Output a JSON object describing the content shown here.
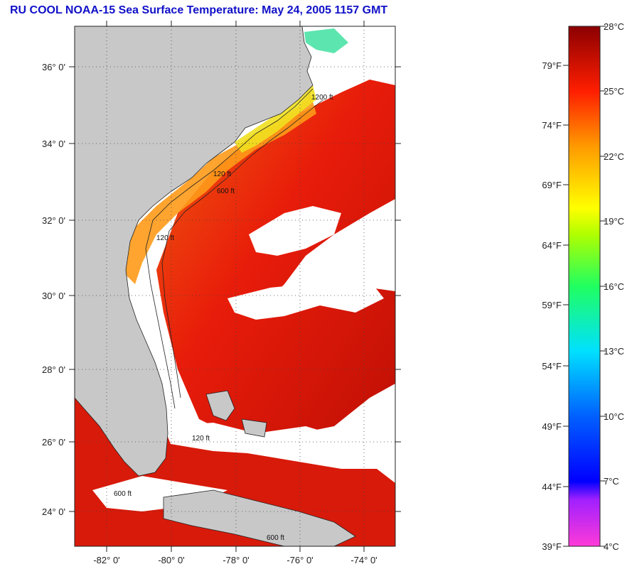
{
  "title": "RU COOL  NOAA-15  Sea Surface Temperature:  May 24, 2005 1157 GMT",
  "map": {
    "lat_range": [
      23,
      37
    ],
    "lon_range": [
      -83,
      -73
    ],
    "lat_labels": [
      "36° 0'",
      "34° 0'",
      "32° 0'",
      "30° 0'",
      "28° 0'",
      "26° 0'",
      "24° 0'"
    ],
    "lon_labels": [
      "-82° 0'",
      "-80° 0'",
      "-78° 0'",
      "-76° 0'",
      "-74° 0'"
    ],
    "isobath_labels": [
      "120 ft",
      "600 ft",
      "1200 ft",
      "120 ft",
      "600 ft",
      "120 ft",
      "600 ft"
    ],
    "colors": {
      "land": "#c8c8c8",
      "cloud": "#ffffff"
    }
  },
  "colorbar": {
    "celsius_labels": [
      "28°C",
      "25°C",
      "22°C",
      "19°C",
      "16°C",
      "13°C",
      "10°C",
      "7°C",
      "4°C"
    ],
    "fahrenheit_labels": [
      "79°F",
      "74°F",
      "69°F",
      "64°F",
      "59°F",
      "54°F",
      "49°F",
      "44°F",
      "39°F"
    ],
    "range_c": [
      4,
      28
    ]
  }
}
